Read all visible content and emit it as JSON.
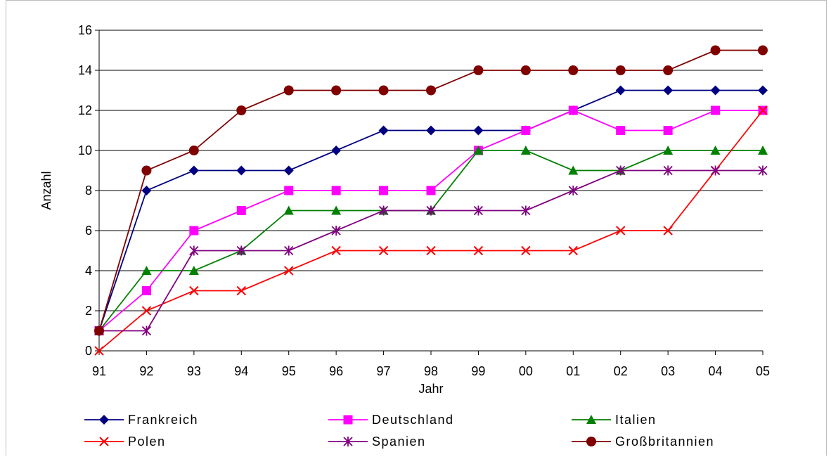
{
  "chart_data": {
    "type": "line",
    "title": "",
    "xlabel": "Jahr",
    "ylabel": "Anzahl",
    "ylim": [
      0,
      16
    ],
    "yticks": [
      0,
      2,
      4,
      6,
      8,
      10,
      12,
      14,
      16
    ],
    "categories": [
      "91",
      "92",
      "93",
      "94",
      "95",
      "96",
      "97",
      "98",
      "99",
      "00",
      "01",
      "02",
      "03",
      "04",
      "05"
    ],
    "grid": "horizontal",
    "legend_position": "bottom",
    "series": [
      {
        "name": "Frankreich",
        "color": "#000080",
        "marker": "diamond",
        "values": [
          1,
          8,
          9,
          9,
          9,
          10,
          11,
          11,
          11,
          11,
          12,
          13,
          13,
          13,
          13
        ]
      },
      {
        "name": "Deutschland",
        "color": "#ff00ff",
        "marker": "square",
        "values": [
          1,
          3,
          6,
          7,
          8,
          8,
          8,
          8,
          10,
          11,
          12,
          11,
          11,
          12,
          12
        ]
      },
      {
        "name": "Italien",
        "color": "#008000",
        "marker": "triangle",
        "values": [
          1,
          4,
          4,
          5,
          7,
          7,
          7,
          7,
          10,
          10,
          9,
          9,
          10,
          10,
          10
        ]
      },
      {
        "name": "Polen",
        "color": "#ff0000",
        "marker": "x",
        "values": [
          0,
          2,
          3,
          3,
          4,
          5,
          5,
          5,
          5,
          5,
          5,
          6,
          6,
          9,
          12
        ]
      },
      {
        "name": "Spanien",
        "color": "#800080",
        "marker": "star",
        "values": [
          1,
          1,
          5,
          5,
          5,
          6,
          7,
          7,
          7,
          7,
          8,
          9,
          9,
          9,
          9
        ]
      },
      {
        "name": "Großbritannien",
        "color": "#800000",
        "marker": "circle",
        "values": [
          1,
          9,
          10,
          12,
          13,
          13,
          13,
          13,
          14,
          14,
          14,
          14,
          14,
          15,
          15
        ]
      }
    ]
  }
}
